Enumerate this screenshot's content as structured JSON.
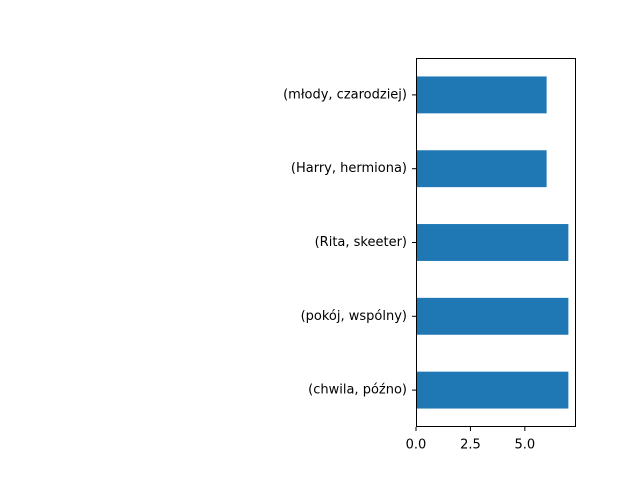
{
  "chart_data": {
    "type": "bar",
    "orientation": "horizontal",
    "title": "",
    "xlabel": "",
    "ylabel": "",
    "categories": [
      "(młody, czarodziej)",
      "(Harry, hermiona)",
      "(Rita, skeeter)",
      "(pokój, wspólny)",
      "(chwila, późno)"
    ],
    "values": [
      6,
      6,
      7,
      7,
      7
    ],
    "xlim": [
      0,
      7.35
    ],
    "xticks": [
      0.0,
      2.5,
      5.0
    ],
    "xtick_labels": [
      "0.0",
      "2.5",
      "5.0"
    ],
    "grid": false,
    "legend": "none",
    "bar_color": "#1f77b4"
  }
}
